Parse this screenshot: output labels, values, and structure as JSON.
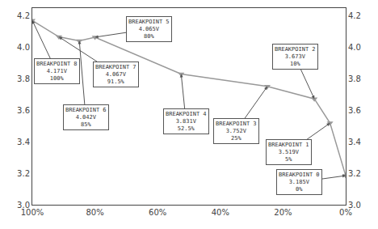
{
  "chart_data": {
    "type": "line",
    "x": [
      0,
      5,
      10,
      25,
      52.5,
      80,
      85,
      91.5,
      100
    ],
    "values": [
      3.185,
      3.519,
      3.673,
      3.752,
      3.831,
      4.065,
      4.042,
      4.067,
      4.171
    ],
    "color": "#999999",
    "marker": "triangle-down",
    "xlim": [
      100,
      0
    ],
    "xticks": [
      {
        "value": 100,
        "label": "100%"
      },
      {
        "value": 80,
        "label": "80%"
      },
      {
        "value": 60,
        "label": "60%"
      },
      {
        "value": 40,
        "label": "40%"
      },
      {
        "value": 20,
        "label": "20%"
      },
      {
        "value": 0,
        "label": "0%"
      }
    ],
    "ylim": [
      3.0,
      4.25
    ],
    "yticks": [
      {
        "value": 3.0,
        "label": "3.0"
      },
      3.2,
      3.4,
      3.6,
      3.8,
      {
        "value": 4.0,
        "label": "4.0"
      },
      4.2
    ],
    "y2lim": [
      3.0,
      4.25
    ],
    "y2ticks": [
      {
        "value": 3.0,
        "label": "3.0"
      },
      3.2,
      3.4,
      3.6,
      3.8,
      {
        "value": 4.0,
        "label": "4.0"
      },
      4.2
    ],
    "grid": false,
    "annotations": [
      {
        "text": "BREAKPOINT 0\n3.185V\n0%",
        "x": 0,
        "y": 3.185
      },
      {
        "text": "BREAKPOINT 1\n3.519V\n5%",
        "x": 5,
        "y": 3.519
      },
      {
        "text": "BREAKPOINT 2\n3.673V\n10%",
        "x": 10,
        "y": 3.673
      },
      {
        "text": "BREAKPOINT 3\n3.752V\n25%",
        "x": 25,
        "y": 3.752
      },
      {
        "text": "BREAKPOINT 4\n3.831V\n52.5%",
        "x": 52.5,
        "y": 3.831
      },
      {
        "text": "BREAKPOINT 5\n4.065V\n80%",
        "x": 80,
        "y": 4.065
      },
      {
        "text": "BREAKPOINT 6\n4.042V\n85%",
        "x": 85,
        "y": 4.042
      },
      {
        "text": "BREAKPOINT 7\n4.067V\n91.5%",
        "x": 91.5,
        "y": 4.067
      },
      {
        "text": "BREAKPOINT 8\n4.171V\n100%",
        "x": 100,
        "y": 4.171
      }
    ]
  }
}
